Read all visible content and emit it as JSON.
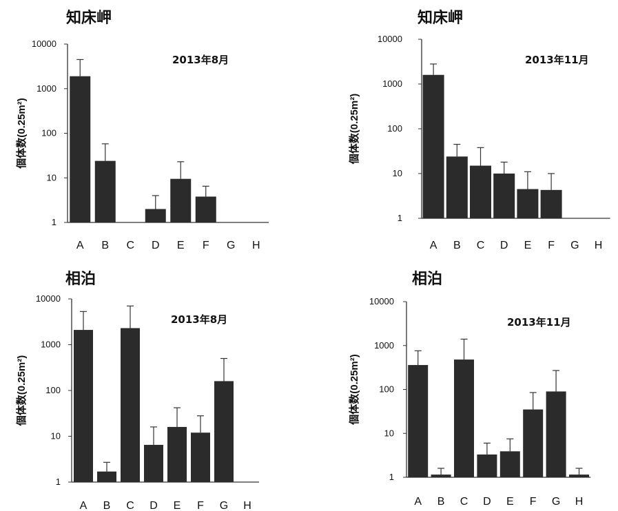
{
  "chart_data": [
    {
      "type": "bar",
      "title": "知床岬",
      "subtitle": "2013年8月",
      "ylabel": "個体数(0.25m²)",
      "yscale": "log",
      "ylim": [
        1,
        10000
      ],
      "yticks": [
        "1",
        "10",
        "100",
        "1000",
        "10000"
      ],
      "categories": [
        "A",
        "B",
        "C",
        "D",
        "E",
        "F",
        "G",
        "H"
      ],
      "values": [
        1900,
        24,
        null,
        2.0,
        9.5,
        3.8,
        null,
        null
      ],
      "error_upper": [
        4500,
        58,
        null,
        4.0,
        23,
        6.5,
        null,
        null
      ],
      "bar_color": "#2b2b2b"
    },
    {
      "type": "bar",
      "title": "知床岬",
      "subtitle": "2013年11月",
      "ylabel": "個体数(0.25m²)",
      "yscale": "log",
      "ylim": [
        1,
        10000
      ],
      "yticks": [
        "1",
        "10",
        "100",
        "1000",
        "10000"
      ],
      "categories": [
        "A",
        "B",
        "C",
        "D",
        "E",
        "F",
        "G",
        "H"
      ],
      "values": [
        1600,
        24,
        15,
        10,
        4.5,
        4.3,
        null,
        null
      ],
      "error_upper": [
        2800,
        45,
        38,
        18,
        11,
        10,
        null,
        null
      ],
      "bar_color": "#2b2b2b"
    },
    {
      "type": "bar",
      "title": "相泊",
      "subtitle": "2013年8月",
      "ylabel": "個体数(0.25m²)",
      "yscale": "log",
      "ylim": [
        1,
        10000
      ],
      "yticks": [
        "1",
        "10",
        "100",
        "1000",
        "10000"
      ],
      "categories": [
        "A",
        "B",
        "C",
        "D",
        "E",
        "F",
        "G",
        "H"
      ],
      "values": [
        2100,
        1.7,
        2300,
        6.5,
        16,
        12,
        160,
        null
      ],
      "error_upper": [
        5300,
        2.7,
        7000,
        16,
        42,
        28,
        500,
        null
      ],
      "bar_color": "#2b2b2b"
    },
    {
      "type": "bar",
      "title": "相泊",
      "subtitle": "2013年11月",
      "ylabel": "個体数(0.25m²)",
      "yscale": "log",
      "ylim": [
        1,
        10000
      ],
      "yticks": [
        "1",
        "10",
        "100",
        "1000",
        "10000"
      ],
      "categories": [
        "A",
        "B",
        "C",
        "D",
        "E",
        "F",
        "G",
        "H"
      ],
      "values": [
        360,
        1.15,
        480,
        3.3,
        3.9,
        35,
        90,
        1.15
      ],
      "error_upper": [
        760,
        1.6,
        1400,
        6,
        7.5,
        85,
        270,
        1.6
      ],
      "bar_color": "#2b2b2b"
    }
  ]
}
